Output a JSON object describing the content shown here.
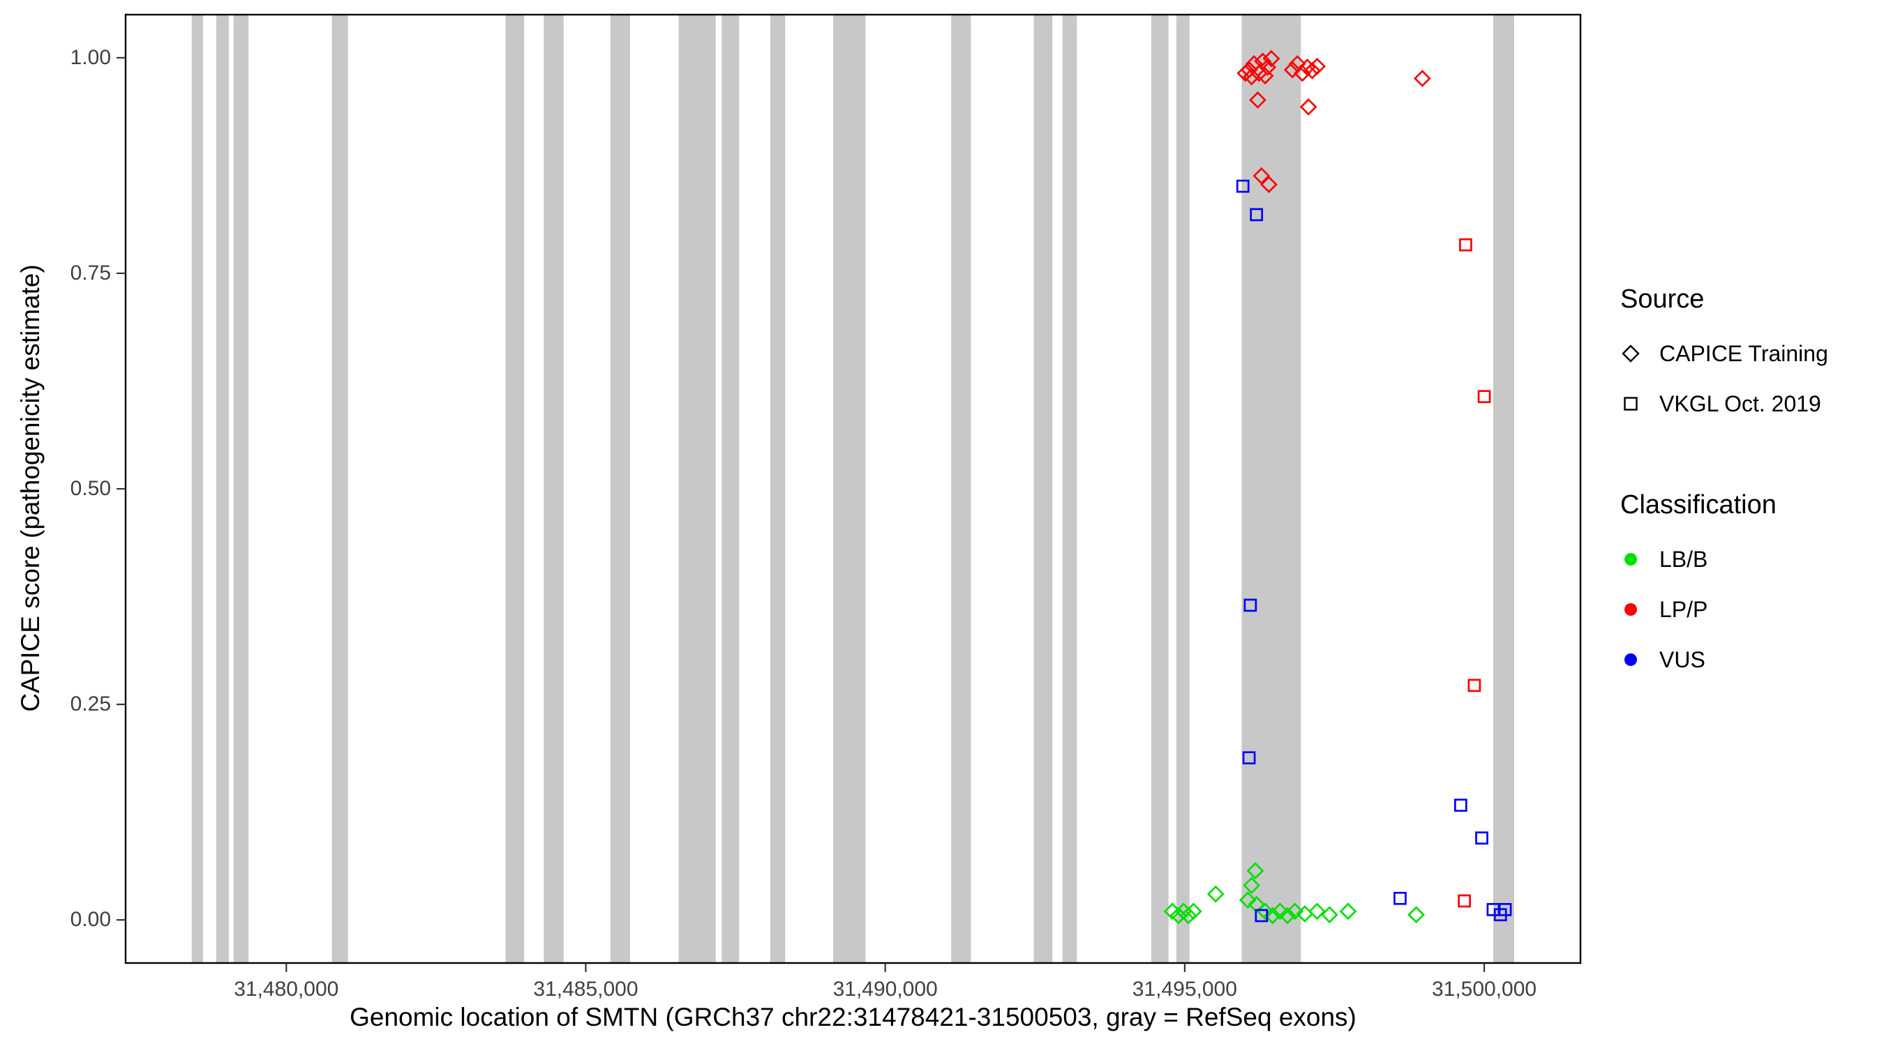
{
  "figure": {
    "background": "#ffffff",
    "y_axis": {
      "title": "CAPICE score (pathogenicity estimate)",
      "tick_labels": [
        "0.00",
        "0.25",
        "0.50",
        "0.75",
        "1.00"
      ]
    },
    "x_axis": {
      "title": "Genomic location of SMTN (GRCh37 chr22:31478421-31500503, gray = RefSeq exons)",
      "tick_labels": [
        "31,480,000",
        "31,485,000",
        "31,490,000",
        "31,495,000",
        "31,500,000"
      ]
    },
    "legend": {
      "source": {
        "title": "Source",
        "items": [
          {
            "label": "CAPICE Training",
            "symbol": "diamond"
          },
          {
            "label": "VKGL Oct. 2019",
            "symbol": "square"
          }
        ]
      },
      "classification": {
        "title": "Classification",
        "items": [
          {
            "label": "LB/B",
            "color": "#00e000"
          },
          {
            "label": "LP/P",
            "color": "#ff0000"
          },
          {
            "label": "VUS",
            "color": "#0000ff"
          }
        ]
      }
    }
  },
  "chart_data": {
    "type": "scatter",
    "title": "",
    "xlabel": "Genomic location of SMTN (GRCh37 chr22:31478421-31500503, gray = RefSeq exons)",
    "ylabel": "CAPICE score (pathogenicity estimate)",
    "xlim": [
      31477317,
      31501607
    ],
    "ylim": [
      -0.05,
      1.05
    ],
    "x_ticks": [
      31480000,
      31485000,
      31490000,
      31495000,
      31500000
    ],
    "y_ticks": [
      0,
      0.25,
      0.5,
      0.75,
      1
    ],
    "grid": false,
    "legend_position": "right",
    "panel_border_color": "#000000",
    "tick_color": "#333333",
    "exon_color": "#c8c8c8",
    "exons": [
      [
        31478421,
        31478610
      ],
      [
        31478830,
        31479040
      ],
      [
        31479120,
        31479370
      ],
      [
        31480760,
        31481030
      ],
      [
        31483660,
        31483970
      ],
      [
        31484300,
        31484630
      ],
      [
        31485410,
        31485740
      ],
      [
        31486550,
        31487170
      ],
      [
        31487270,
        31487560
      ],
      [
        31488080,
        31488330
      ],
      [
        31489130,
        31489670
      ],
      [
        31491100,
        31491430
      ],
      [
        31492480,
        31492790
      ],
      [
        31492960,
        31493200
      ],
      [
        31494440,
        31494730
      ],
      [
        31494860,
        31495080
      ],
      [
        31495950,
        31496940
      ],
      [
        31500150,
        31500500
      ]
    ],
    "series": [
      {
        "name": "CAPICE Training - LB/B",
        "source": "CAPICE Training",
        "classification": "LB/B",
        "shape": "diamond",
        "color": "#00e000",
        "points": [
          [
            31494793,
            0.01
          ],
          [
            31494896,
            0.005
          ],
          [
            31494979,
            0.01
          ],
          [
            31495062,
            0.005
          ],
          [
            31495145,
            0.01
          ],
          [
            31495517,
            0.03
          ],
          [
            31496054,
            0.023
          ],
          [
            31496116,
            0.04
          ],
          [
            31496178,
            0.057
          ],
          [
            31496198,
            0.018
          ],
          [
            31496343,
            0.01
          ],
          [
            31496467,
            0.005
          ],
          [
            31496591,
            0.01
          ],
          [
            31496715,
            0.005
          ],
          [
            31496839,
            0.01
          ],
          [
            31497004,
            0.007
          ],
          [
            31497210,
            0.01
          ],
          [
            31497417,
            0.006
          ],
          [
            31497727,
            0.01
          ],
          [
            31498864,
            0.006
          ]
        ]
      },
      {
        "name": "VKGL Oct. 2019 - VUS",
        "source": "VKGL Oct. 2019",
        "classification": "VUS",
        "shape": "square",
        "color": "#0000ff",
        "points": [
          [
            31495971,
            0.851
          ],
          [
            31496198,
            0.818
          ],
          [
            31496095,
            0.365
          ],
          [
            31496074,
            0.188
          ],
          [
            31499607,
            0.133
          ],
          [
            31499959,
            0.095
          ],
          [
            31498595,
            0.025
          ],
          [
            31496281,
            0.005
          ],
          [
            31500150,
            0.012
          ],
          [
            31500270,
            0.006
          ],
          [
            31500350,
            0.012
          ]
        ]
      },
      {
        "name": "VKGL Oct. 2019 - LP/P",
        "source": "VKGL Oct. 2019",
        "classification": "LP/P",
        "shape": "square",
        "color": "#ff0000",
        "points": [
          [
            31499690,
            0.783
          ],
          [
            31500000,
            0.607
          ],
          [
            31499835,
            0.272
          ],
          [
            31499669,
            0.022
          ]
        ]
      },
      {
        "name": "CAPICE Training - LP/P",
        "source": "CAPICE Training",
        "classification": "LP/P",
        "shape": "diamond",
        "color": "#ff0000",
        "points": [
          [
            31496012,
            0.982
          ],
          [
            31496074,
            0.986
          ],
          [
            31496116,
            0.978
          ],
          [
            31496157,
            0.993
          ],
          [
            31496219,
            0.951
          ],
          [
            31496240,
            0.982
          ],
          [
            31496281,
            0.863
          ],
          [
            31496302,
            0.996
          ],
          [
            31496343,
            0.979
          ],
          [
            31496384,
            0.989
          ],
          [
            31496405,
            0.853
          ],
          [
            31496446,
            0.999
          ],
          [
            31496798,
            0.986
          ],
          [
            31496880,
            0.993
          ],
          [
            31496963,
            0.982
          ],
          [
            31497045,
            0.989
          ],
          [
            31497066,
            0.943
          ],
          [
            31497128,
            0.985
          ],
          [
            31497210,
            0.99
          ],
          [
            31498967,
            0.976
          ]
        ]
      }
    ]
  }
}
